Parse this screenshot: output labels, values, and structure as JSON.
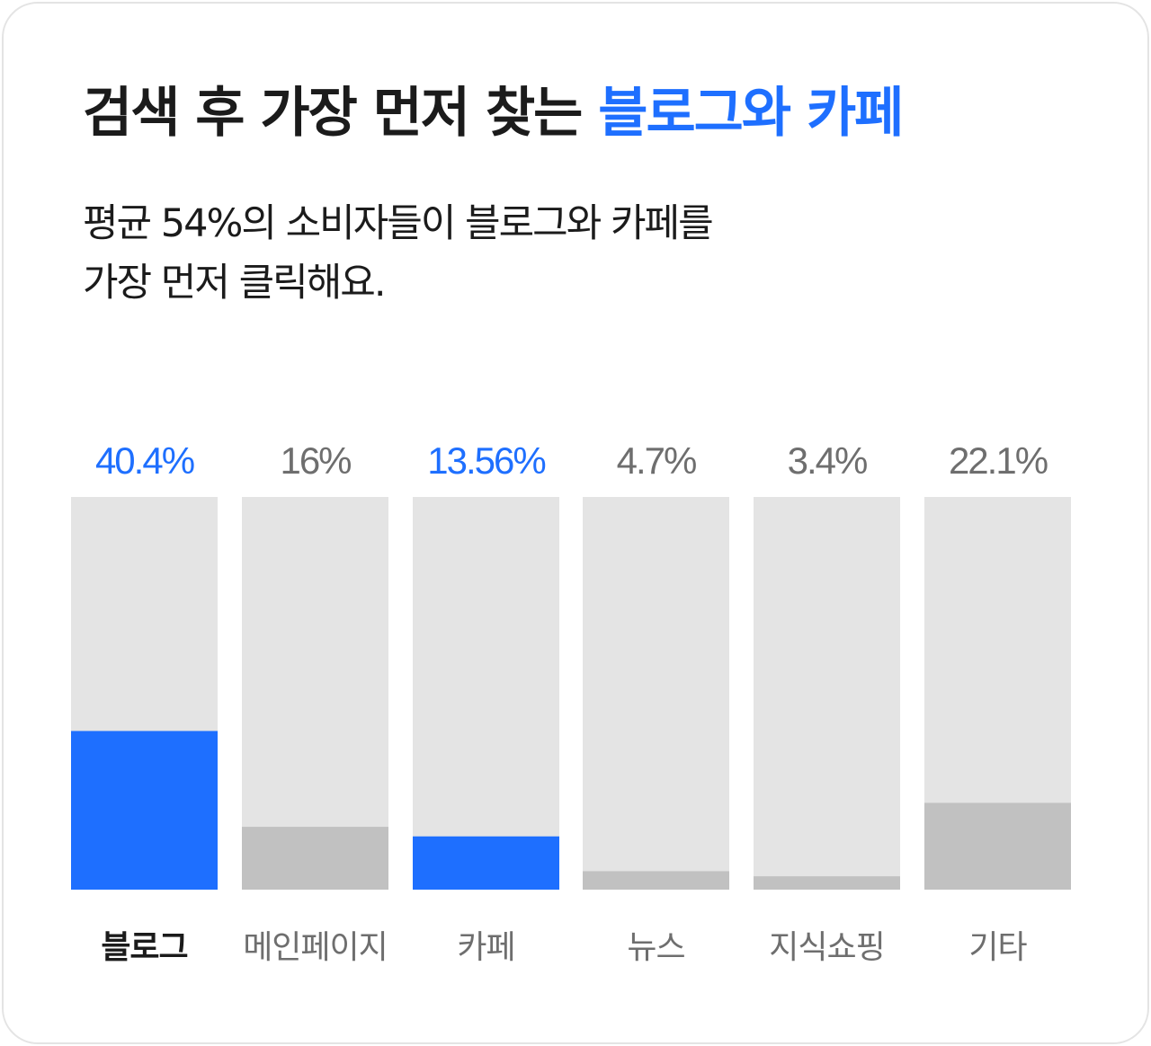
{
  "header": {
    "title_main": "검색 후 가장 먼저 찾는 ",
    "title_accent": "블로그와 카페",
    "subtitle_line1": "평균 54%의 소비자들이 블로그와 카페를",
    "subtitle_line2": "가장 먼저 클릭해요."
  },
  "colors": {
    "accent": "#1e6fff",
    "neutral_bar": "#c1c1c1",
    "track": "#e4e4e4",
    "label_dark": "#1b1b1b",
    "label_gray": "#6e6e6e"
  },
  "chart_data": {
    "type": "bar",
    "categories": [
      "블로그",
      "메인페이지",
      "카페",
      "뉴스",
      "지식쇼핑",
      "기타"
    ],
    "values": [
      40.4,
      16,
      13.56,
      4.7,
      3.4,
      22.1
    ],
    "value_labels": [
      "40.4%",
      "16%",
      "13.56%",
      "4.7%",
      "3.4%",
      "22.1%"
    ],
    "highlighted": [
      true,
      false,
      true,
      false,
      false,
      false
    ],
    "bold_category": [
      true,
      false,
      false,
      false,
      false,
      false
    ],
    "ylim": [
      0,
      100
    ],
    "grid": false,
    "legend": "none"
  }
}
